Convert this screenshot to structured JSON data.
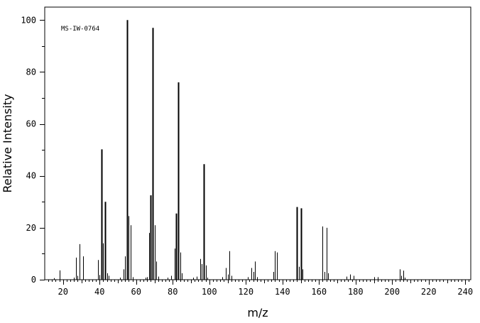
{
  "chart_data": {
    "type": "bar",
    "annotation": "MS-IW-0764",
    "xlabel": "m/z",
    "ylabel": "Relative Intensity",
    "xlim": [
      10,
      243
    ],
    "ylim": [
      0,
      105
    ],
    "x_ticks": [
      20,
      40,
      60,
      80,
      100,
      120,
      140,
      160,
      180,
      200,
      220,
      240
    ],
    "y_ticks": [
      0,
      20,
      40,
      60,
      80,
      100
    ],
    "series": [
      {
        "peaks": [
          {
            "x": 15,
            "y": 0.6
          },
          {
            "x": 18,
            "y": 3.6
          },
          {
            "x": 26,
            "y": 0.8
          },
          {
            "x": 27,
            "y": 8.5
          },
          {
            "x": 28,
            "y": 1.5
          },
          {
            "x": 29,
            "y": 13.7
          },
          {
            "x": 31,
            "y": 9.0
          },
          {
            "x": 39,
            "y": 7.6
          },
          {
            "x": 40,
            "y": 1.8
          },
          {
            "x": 41,
            "y": 50.2
          },
          {
            "x": 42,
            "y": 14.0
          },
          {
            "x": 43,
            "y": 30.0
          },
          {
            "x": 44,
            "y": 2.5
          },
          {
            "x": 45,
            "y": 1.5
          },
          {
            "x": 51,
            "y": 0.8
          },
          {
            "x": 53,
            "y": 4.0
          },
          {
            "x": 54,
            "y": 9.0
          },
          {
            "x": 55,
            "y": 100.0
          },
          {
            "x": 56,
            "y": 24.5
          },
          {
            "x": 57,
            "y": 21.0
          },
          {
            "x": 58,
            "y": 1.0
          },
          {
            "x": 65,
            "y": 0.8
          },
          {
            "x": 66,
            "y": 1.0
          },
          {
            "x": 67,
            "y": 18.0
          },
          {
            "x": 68,
            "y": 32.5
          },
          {
            "x": 69,
            "y": 97.0
          },
          {
            "x": 70,
            "y": 21.0
          },
          {
            "x": 71,
            "y": 7.0
          },
          {
            "x": 72,
            "y": 1.2
          },
          {
            "x": 77,
            "y": 0.8
          },
          {
            "x": 79,
            "y": 1.5
          },
          {
            "x": 81,
            "y": 12.0
          },
          {
            "x": 82,
            "y": 25.5
          },
          {
            "x": 83,
            "y": 76.0
          },
          {
            "x": 84,
            "y": 10.5
          },
          {
            "x": 85,
            "y": 2.5
          },
          {
            "x": 91,
            "y": 0.8
          },
          {
            "x": 93,
            "y": 1.2
          },
          {
            "x": 95,
            "y": 8.0
          },
          {
            "x": 96,
            "y": 6.0
          },
          {
            "x": 97,
            "y": 44.5
          },
          {
            "x": 98,
            "y": 5.5
          },
          {
            "x": 99,
            "y": 0.8
          },
          {
            "x": 107,
            "y": 1.0
          },
          {
            "x": 109,
            "y": 4.5
          },
          {
            "x": 110,
            "y": 2.0
          },
          {
            "x": 111,
            "y": 11.0
          },
          {
            "x": 112,
            "y": 1.5
          },
          {
            "x": 121,
            "y": 1.0
          },
          {
            "x": 123,
            "y": 4.5
          },
          {
            "x": 124,
            "y": 3.0
          },
          {
            "x": 125,
            "y": 7.0
          },
          {
            "x": 126,
            "y": 1.0
          },
          {
            "x": 135,
            "y": 3.0
          },
          {
            "x": 136,
            "y": 11.0
          },
          {
            "x": 137,
            "y": 10.5
          },
          {
            "x": 148,
            "y": 28.0
          },
          {
            "x": 149,
            "y": 5.0
          },
          {
            "x": 150,
            "y": 27.5
          },
          {
            "x": 151,
            "y": 4.0
          },
          {
            "x": 162,
            "y": 20.5
          },
          {
            "x": 163,
            "y": 3.0
          },
          {
            "x": 164,
            "y": 20.0
          },
          {
            "x": 165,
            "y": 2.5
          },
          {
            "x": 175,
            "y": 1.2
          },
          {
            "x": 177,
            "y": 2.0
          },
          {
            "x": 179,
            "y": 1.5
          },
          {
            "x": 190,
            "y": 1.0
          },
          {
            "x": 192,
            "y": 1.0
          },
          {
            "x": 204,
            "y": 4.0
          },
          {
            "x": 205,
            "y": 1.5
          },
          {
            "x": 206,
            "y": 3.5
          },
          {
            "x": 207,
            "y": 0.8
          }
        ]
      }
    ]
  }
}
